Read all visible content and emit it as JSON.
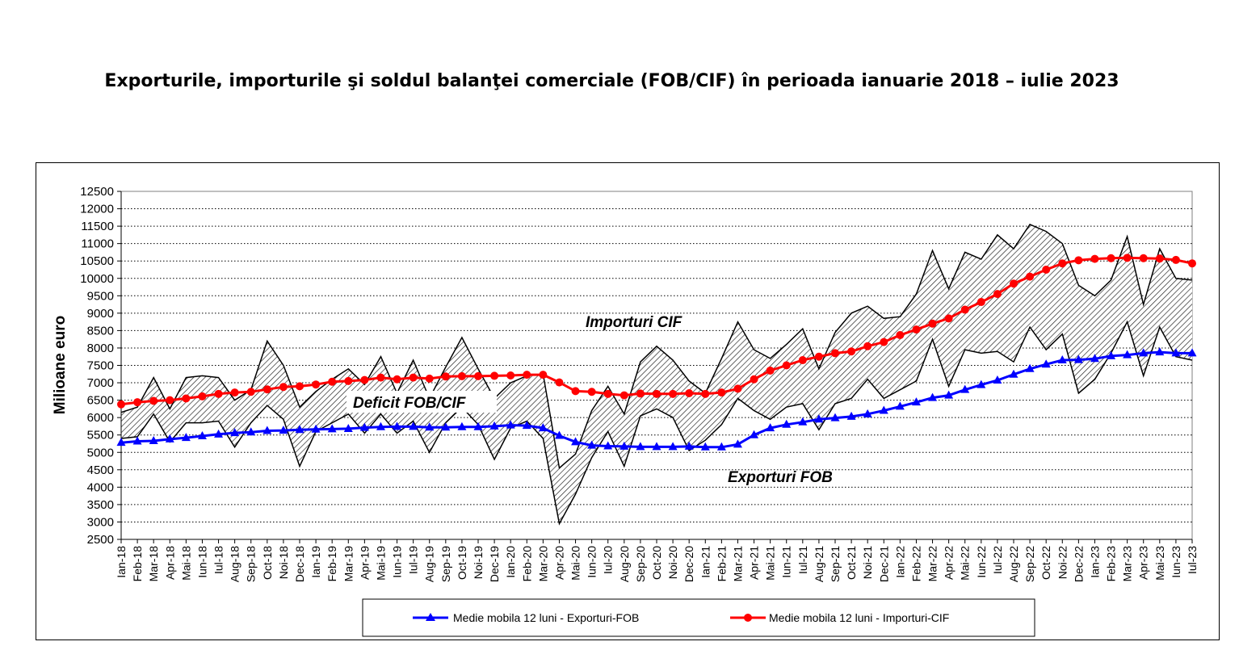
{
  "title": "Exporturile, importurile şi soldul balanţei comerciale (FOB/CIF) în perioada ianuarie 2018 – iulie 2023",
  "chart_data": {
    "type": "line",
    "ylabel": "Milioane  euro",
    "ylim": [
      2500,
      12500
    ],
    "ytick_step": 500,
    "grid": "horizontal dotted",
    "categories": [
      "Ian-18",
      "Feb-18",
      "Mar-18",
      "Apr-18",
      "Mai-18",
      "Iun-18",
      "Iul-18",
      "Aug-18",
      "Sep-18",
      "Oct-18",
      "Noi-18",
      "Dec-18",
      "Ian-19",
      "Feb-19",
      "Mar-19",
      "Apr-19",
      "Mai-19",
      "Iun-19",
      "Iul-19",
      "Aug-19",
      "Sep-19",
      "Oct-19",
      "Noi-19",
      "Dec-19",
      "Ian-20",
      "Feb-20",
      "Mar-20",
      "Apr-20",
      "Mai-20",
      "Iun-20",
      "Iul-20",
      "Aug-20",
      "Sep-20",
      "Oct-20",
      "Noi-20",
      "Dec-20",
      "Ian-21",
      "Feb-21",
      "Mar-21",
      "Apr-21",
      "Mai-21",
      "Iun-21",
      "Iul-21",
      "Aug-21",
      "Sep-21",
      "Oct-21",
      "Noi-21",
      "Dec-21",
      "Ian-22",
      "Feb-22",
      "Mar-22",
      "Apr-22",
      "Mai-22",
      "Iun-22",
      "Iul-22",
      "Aug-22",
      "Sep-22",
      "Oct-22",
      "Noi-22",
      "Dec-22",
      "Ian-23",
      "Feb-23",
      "Mar-23",
      "Apr-23",
      "Mai-23",
      "Iun-23",
      "Iul-23"
    ],
    "band_series": [
      {
        "role": "imports",
        "values": [
          6150,
          6300,
          7150,
          6250,
          7150,
          7200,
          7150,
          6500,
          6800,
          8200,
          7500,
          6300,
          6750,
          7100,
          7400,
          6950,
          7750,
          6700,
          7650,
          6550,
          7450,
          8300,
          7400,
          6550,
          7000,
          7200,
          7250,
          4550,
          4950,
          6200,
          6900,
          6100,
          7600,
          8050,
          7650,
          7050,
          6700,
          7700,
          8750,
          7950,
          7700,
          8100,
          8550,
          7400,
          8450,
          9000,
          9200,
          8850,
          8900,
          9550,
          10800,
          9700,
          10750,
          10550,
          11250,
          10850,
          11550,
          11350,
          11000,
          9800,
          9500,
          9950,
          11200,
          9250,
          10850,
          10000,
          9950
        ]
      },
      {
        "role": "exports",
        "values": [
          5400,
          5450,
          6100,
          5300,
          5850,
          5850,
          5900,
          5150,
          5850,
          6350,
          5950,
          4600,
          5600,
          5850,
          6100,
          5550,
          6100,
          5550,
          5900,
          5000,
          5850,
          6300,
          5800,
          4800,
          5700,
          5900,
          5400,
          2950,
          3800,
          4850,
          5600,
          4600,
          6050,
          6250,
          6000,
          5050,
          5350,
          5800,
          6550,
          6200,
          5950,
          6300,
          6400,
          5650,
          6400,
          6550,
          7100,
          6550,
          6800,
          7050,
          8250,
          6900,
          7950,
          7850,
          7900,
          7600,
          8600,
          7950,
          8400,
          6700,
          7100,
          7850,
          8750,
          7200,
          8600,
          7750,
          7650
        ]
      }
    ],
    "series": [
      {
        "name": "Medie mobila 12 luni - Exporturi-FOB",
        "color": "#0000FF",
        "marker": "triangle",
        "values": [
          5280,
          5320,
          5330,
          5380,
          5420,
          5470,
          5520,
          5560,
          5580,
          5620,
          5630,
          5650,
          5660,
          5670,
          5680,
          5710,
          5730,
          5740,
          5740,
          5720,
          5720,
          5730,
          5730,
          5750,
          5780,
          5770,
          5700,
          5480,
          5300,
          5200,
          5180,
          5170,
          5160,
          5160,
          5160,
          5170,
          5150,
          5150,
          5230,
          5500,
          5700,
          5800,
          5870,
          5950,
          5990,
          6030,
          6100,
          6200,
          6320,
          6440,
          6570,
          6640,
          6800,
          6940,
          7070,
          7240,
          7400,
          7530,
          7650,
          7660,
          7690,
          7770,
          7800,
          7850,
          7880,
          7850,
          7850
        ]
      },
      {
        "name": "Medie mobila 12 luni - Importuri-CIF",
        "color": "#FF0000",
        "marker": "circle",
        "values": [
          6380,
          6440,
          6480,
          6500,
          6550,
          6610,
          6680,
          6720,
          6740,
          6810,
          6880,
          6900,
          6950,
          7030,
          7050,
          7080,
          7150,
          7100,
          7150,
          7120,
          7180,
          7190,
          7190,
          7200,
          7210,
          7230,
          7230,
          7010,
          6760,
          6740,
          6680,
          6640,
          6690,
          6680,
          6680,
          6700,
          6680,
          6720,
          6830,
          7100,
          7350,
          7500,
          7650,
          7750,
          7850,
          7900,
          8050,
          8170,
          8370,
          8530,
          8700,
          8850,
          9100,
          9320,
          9550,
          9850,
          10050,
          10250,
          10430,
          10520,
          10560,
          10580,
          10590,
          10580,
          10570,
          10530,
          10430
        ]
      }
    ],
    "annotations": [
      "Importuri CIF",
      "Deficit FOB/CIF",
      "Exporturi FOB"
    ]
  }
}
